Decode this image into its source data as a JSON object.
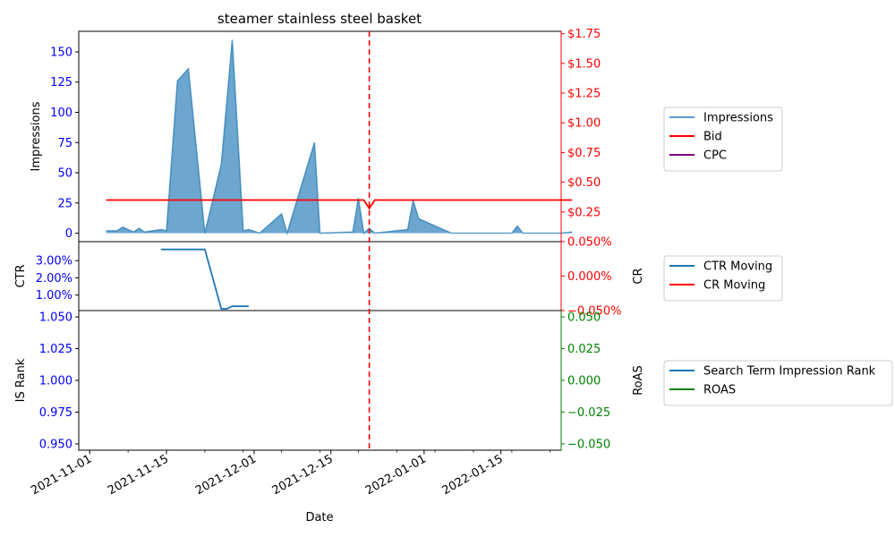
{
  "chart_data": {
    "title": "steamer stainless steel basket",
    "x_axis": {
      "label": "Date",
      "range": [
        "2021-10-30",
        "2022-01-26"
      ],
      "ticks": [
        {
          "date": "2021-11-01",
          "label": "2021-11-01"
        },
        {
          "date": "2021-11-15",
          "label": "2021-11-15"
        },
        {
          "date": "2021-12-01",
          "label": "2021-12-01"
        },
        {
          "date": "2021-12-15",
          "label": "2021-12-15"
        },
        {
          "date": "2022-01-01",
          "label": "2022-01-01"
        },
        {
          "date": "2022-01-15",
          "label": "2022-01-15"
        }
      ]
    },
    "vline": {
      "date": "2021-12-22",
      "color": "#ff0000"
    },
    "panels": [
      {
        "id": "top",
        "left_axis": {
          "label": "Impressions",
          "color": "#0000ff",
          "range": [
            -7,
            167
          ],
          "ticks": [
            {
              "v": 0,
              "label": "0"
            },
            {
              "v": 25,
              "label": "25"
            },
            {
              "v": 50,
              "label": "50"
            },
            {
              "v": 75,
              "label": "75"
            },
            {
              "v": 100,
              "label": "100"
            },
            {
              "v": 125,
              "label": "125"
            },
            {
              "v": 150,
              "label": "150"
            }
          ]
        },
        "right_axis": {
          "label": "",
          "color": "#ff0000",
          "range": [
            0,
            1.77
          ],
          "ticks": [
            {
              "v": 0.25,
              "label": "$0.25"
            },
            {
              "v": 0.5,
              "label": "$0.50"
            },
            {
              "v": 0.75,
              "label": "$0.75"
            },
            {
              "v": 1.0,
              "label": "$1.00"
            },
            {
              "v": 1.25,
              "label": "$1.25"
            },
            {
              "v": 1.5,
              "label": "$1.50"
            },
            {
              "v": 1.75,
              "label": "$1.75"
            }
          ]
        },
        "legend": [
          {
            "name": "Impressions",
            "color": "#5b9bd5"
          },
          {
            "name": "Bid",
            "color": "#ff0000"
          },
          {
            "name": "CPC",
            "color": "#800080"
          }
        ],
        "series": [
          {
            "name": "Impressions",
            "type": "area",
            "axis": "left",
            "color": "#1f77b4",
            "points": [
              [
                "2021-11-04",
                2
              ],
              [
                "2021-11-06",
                2
              ],
              [
                "2021-11-07",
                5
              ],
              [
                "2021-11-09",
                1
              ],
              [
                "2021-11-10",
                4
              ],
              [
                "2021-11-11",
                1
              ],
              [
                "2021-11-14",
                3
              ],
              [
                "2021-11-15",
                2
              ],
              [
                "2021-11-17",
                126
              ],
              [
                "2021-11-19",
                136
              ],
              [
                "2021-11-22",
                0
              ],
              [
                "2021-11-25",
                57
              ],
              [
                "2021-11-27",
                160
              ],
              [
                "2021-11-29",
                2
              ],
              [
                "2021-11-30",
                3
              ],
              [
                "2021-12-02",
                0
              ],
              [
                "2021-12-06",
                16
              ],
              [
                "2021-12-07",
                0
              ],
              [
                "2021-12-12",
                75
              ],
              [
                "2021-12-13",
                0
              ],
              [
                "2021-12-19",
                1
              ],
              [
                "2021-12-20",
                29
              ],
              [
                "2021-12-21",
                0
              ],
              [
                "2021-12-22",
                4
              ],
              [
                "2021-12-23",
                0
              ],
              [
                "2021-12-29",
                3
              ],
              [
                "2021-12-30",
                27
              ],
              [
                "2021-12-31",
                12
              ],
              [
                "2022-01-06",
                0
              ],
              [
                "2022-01-17",
                0
              ],
              [
                "2022-01-18",
                6
              ],
              [
                "2022-01-19",
                0
              ],
              [
                "2022-01-26",
                0
              ],
              [
                "2022-01-28",
                1
              ]
            ]
          },
          {
            "name": "Bid",
            "type": "line",
            "axis": "right",
            "color": "#ff0000",
            "points": [
              [
                "2021-11-04",
                0.35
              ],
              [
                "2021-12-21",
                0.35
              ],
              [
                "2021-12-22",
                0.28
              ],
              [
                "2021-12-23",
                0.35
              ],
              [
                "2022-01-28",
                0.35
              ]
            ]
          }
        ]
      },
      {
        "id": "middle",
        "left_axis": {
          "label": "CTR",
          "color": "#0000ff",
          "range": [
            0.1,
            4.1
          ],
          "ticks": [
            {
              "v": 1,
              "label": "1.00%"
            },
            {
              "v": 2,
              "label": "2.00%"
            },
            {
              "v": 3,
              "label": "3.00%"
            }
          ]
        },
        "right_axis": {
          "label": "CR",
          "color": "#ff0000",
          "range": [
            -0.05,
            0.05
          ],
          "ticks": [
            {
              "v": -0.05,
              "label": "−0.050%"
            },
            {
              "v": 0,
              "label": "0.000%"
            },
            {
              "v": 0.05,
              "label": "0.050%"
            }
          ]
        },
        "legend": [
          {
            "name": "CTR Moving",
            "color": "#1f77b4"
          },
          {
            "name": "CR Moving",
            "color": "#ff0000"
          }
        ],
        "series": [
          {
            "name": "CTR Moving",
            "type": "line",
            "axis": "left",
            "color": "#1f77b4",
            "points": [
              [
                "2021-11-14",
                3.65
              ],
              [
                "2021-11-22",
                3.65
              ],
              [
                "2021-11-25",
                0.2
              ],
              [
                "2021-11-26",
                0.2
              ],
              [
                "2021-11-27",
                0.35
              ],
              [
                "2021-11-30",
                0.35
              ]
            ]
          }
        ]
      },
      {
        "id": "bottom",
        "left_axis": {
          "label": "IS Rank",
          "color": "#0000ff",
          "range": [
            0.945,
            1.055
          ],
          "ticks": [
            {
              "v": 0.95,
              "label": "0.950"
            },
            {
              "v": 0.975,
              "label": "0.975"
            },
            {
              "v": 1.0,
              "label": "1.000"
            },
            {
              "v": 1.025,
              "label": "1.025"
            },
            {
              "v": 1.05,
              "label": "1.050"
            }
          ]
        },
        "right_axis": {
          "label": "RoAS",
          "color": "#008000",
          "range": [
            -0.055,
            0.055
          ],
          "ticks": [
            {
              "v": -0.05,
              "label": "−0.050"
            },
            {
              "v": -0.025,
              "label": "−0.025"
            },
            {
              "v": 0,
              "label": "0.000"
            },
            {
              "v": 0.025,
              "label": "0.025"
            },
            {
              "v": 0.05,
              "label": "0.050"
            }
          ]
        },
        "legend": [
          {
            "name": "Search Term Impression Rank",
            "color": "#1f77b4"
          },
          {
            "name": "ROAS",
            "color": "#008000"
          }
        ],
        "series": []
      }
    ]
  }
}
